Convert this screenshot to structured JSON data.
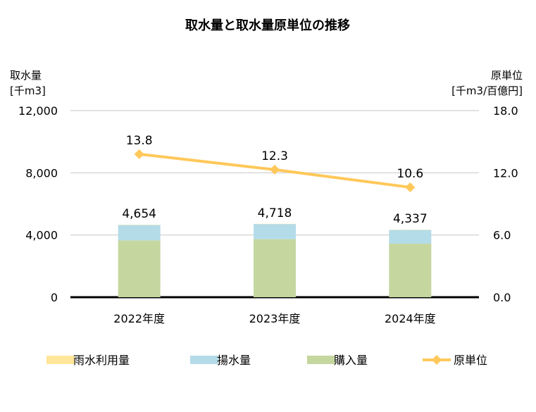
{
  "chart_data": {
    "type": "bar",
    "title": "取水量と取水量原単位の推移",
    "categories": [
      "2022年度",
      "2023年度",
      "2024年度"
    ],
    "y_left": {
      "label": [
        "取水量",
        "[千m3]"
      ],
      "range": [
        0,
        12000
      ],
      "ticks": [
        "0",
        "4,000",
        "8,000",
        "12,000"
      ]
    },
    "y_right": {
      "label": [
        "原単位",
        "[千m3/百億円]"
      ],
      "range": [
        0,
        18
      ],
      "ticks": [
        "0.0",
        "6.0",
        "12.0",
        "18.0"
      ]
    },
    "series": [
      {
        "name": "雨水利用量",
        "type": "stacked-bar",
        "color": "#FFE699",
        "values": [
          14,
          13,
          12
        ]
      },
      {
        "name": "揚水量",
        "type": "stacked-bar",
        "color": "#B4DCE8",
        "values": [
          990,
          975,
          885
        ]
      },
      {
        "name": "購入量",
        "type": "stacked-bar",
        "color": "#C5D79F",
        "values": [
          3650,
          3730,
          3440
        ]
      },
      {
        "name": "原単位",
        "type": "line",
        "axis": "right",
        "color": "#FFC85A",
        "values": [
          13.8,
          12.3,
          10.6
        ],
        "labels": [
          "13.8",
          "12.3",
          "10.6"
        ]
      }
    ],
    "totals": [
      "4,654",
      "4,718",
      "4,337"
    ],
    "total_values": [
      4654,
      4718,
      4337
    ],
    "grid": true,
    "legend": "bottom"
  }
}
